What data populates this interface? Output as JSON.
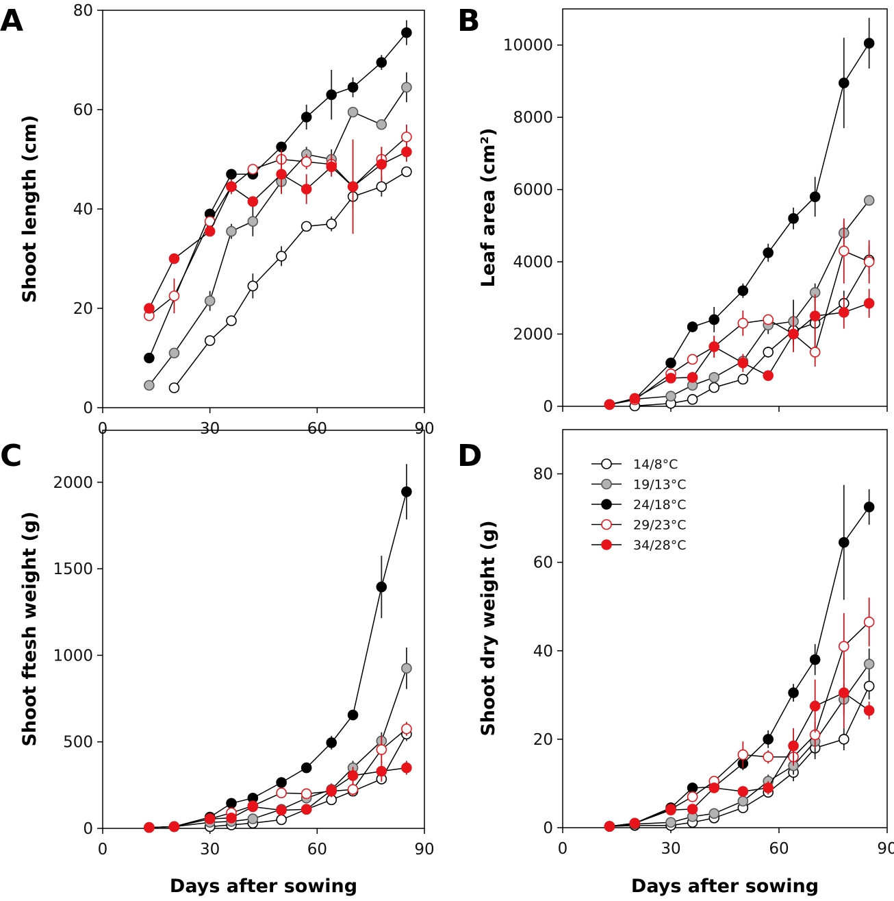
{
  "figure": {
    "legend": [
      {
        "label": "14/8°C",
        "fill": "#ffffff",
        "stroke": "#000000",
        "line": "#000000"
      },
      {
        "label": "19/13°C",
        "fill": "#b3b3b3",
        "stroke": "#555555",
        "line": "#000000"
      },
      {
        "label": "24/18°C",
        "fill": "#000000",
        "stroke": "#000000",
        "line": "#000000"
      },
      {
        "label": "29/23°C",
        "fill": "#ffffff",
        "stroke": "#e8141b",
        "line": "#000000"
      },
      {
        "label": "34/28°C",
        "fill": "#e8141b",
        "stroke": "#e8141b",
        "line": "#000000"
      }
    ]
  },
  "chart_data": [
    {
      "id": "A",
      "panel_label": "A",
      "type": "line",
      "ylabel": "Shoot length (cm)",
      "xlabel": "",
      "xlim": [
        0,
        90
      ],
      "ylim": [
        0,
        80
      ],
      "xticks": [
        0,
        30,
        60,
        90
      ],
      "yticks": [
        0,
        20,
        40,
        60,
        80
      ],
      "series": [
        {
          "name": "14/8°C",
          "x": [
            20,
            30,
            36,
            42,
            50,
            57,
            64,
            70,
            78,
            85
          ],
          "y": [
            4,
            13.5,
            17.5,
            24.5,
            30.5,
            36.5,
            37,
            42.5,
            44.5,
            47.5
          ],
          "err": [
            0,
            0.5,
            0.5,
            2.5,
            2,
            1,
            1.5,
            2.5,
            2,
            1
          ]
        },
        {
          "name": "19/13°C",
          "x": [
            13,
            20,
            30,
            36,
            42,
            50,
            57,
            64,
            70,
            78,
            85
          ],
          "y": [
            4.5,
            11,
            21.5,
            35.5,
            37.5,
            45.5,
            51,
            50,
            59.5,
            57,
            64.5
          ],
          "err": [
            0,
            0.5,
            2,
            1.5,
            3,
            2,
            1.5,
            2,
            1,
            0.5,
            3
          ]
        },
        {
          "name": "24/18°C",
          "x": [
            13,
            30,
            36,
            42,
            50,
            57,
            64,
            70,
            78,
            85
          ],
          "y": [
            10,
            39,
            47,
            47,
            52.5,
            58.5,
            63,
            64.5,
            69.5,
            75.5
          ],
          "err": [
            0,
            0.5,
            0.5,
            0.5,
            0.5,
            2.5,
            5,
            2,
            1.5,
            2.5
          ]
        },
        {
          "name": "29/23°C",
          "x": [
            13,
            20,
            30,
            36,
            42,
            50,
            57,
            64,
            70,
            78,
            85
          ],
          "y": [
            18.5,
            22.5,
            37.5,
            44.5,
            48,
            50,
            49.5,
            49,
            44.5,
            50,
            54.5
          ],
          "err": [
            0,
            3.5,
            1,
            1,
            0.5,
            2,
            1.5,
            2,
            1,
            2.5,
            2.5
          ]
        },
        {
          "name": "34/28°C",
          "x": [
            13,
            20,
            30,
            36,
            42,
            50,
            57,
            64,
            70,
            78,
            85
          ],
          "y": [
            20,
            30,
            35.5,
            44.5,
            41.5,
            47,
            44,
            48.5,
            44.5,
            49,
            51.5
          ],
          "err": [
            0,
            0.5,
            0.5,
            1.5,
            1,
            4,
            3,
            2,
            9.5,
            3.5,
            2
          ]
        }
      ]
    },
    {
      "id": "B",
      "panel_label": "B",
      "type": "line",
      "ylabel": "Leaf area (cm²)",
      "xlabel": "",
      "xlim": [
        0,
        90
      ],
      "ylim": [
        0,
        11000
      ],
      "xticks": [],
      "yticks": [
        0,
        2000,
        4000,
        6000,
        8000,
        10000
      ],
      "series": [
        {
          "name": "14/8°C",
          "x": [
            20,
            30,
            36,
            42,
            50,
            57,
            64,
            70,
            78,
            85
          ],
          "y": [
            10,
            80,
            190,
            520,
            750,
            1500,
            2100,
            2300,
            2850,
            4050
          ],
          "err": [
            0,
            60,
            60,
            80,
            90,
            150,
            250,
            700,
            350,
            400
          ]
        },
        {
          "name": "19/13°C",
          "x": [
            13,
            20,
            30,
            36,
            42,
            50,
            57,
            64,
            70,
            78,
            85
          ],
          "y": [
            50,
            200,
            280,
            580,
            800,
            1250,
            2250,
            2350,
            3150,
            4800,
            5700
          ],
          "err": [
            0,
            50,
            80,
            80,
            100,
            150,
            250,
            600,
            250,
            300,
            100
          ]
        },
        {
          "name": "24/18°C",
          "x": [
            13,
            20,
            30,
            36,
            42,
            50,
            57,
            64,
            70,
            78,
            85
          ],
          "y": [
            50,
            200,
            1200,
            2200,
            2400,
            3200,
            4250,
            5200,
            5800,
            8950,
            10050
          ],
          "err": [
            0,
            50,
            100,
            150,
            350,
            200,
            250,
            300,
            550,
            1250,
            700
          ]
        },
        {
          "name": "29/23°C",
          "x": [
            13,
            20,
            30,
            36,
            42,
            50,
            57,
            64,
            70,
            78,
            85
          ],
          "y": [
            50,
            180,
            900,
            1300,
            1650,
            2300,
            2400,
            2000,
            1500,
            4300,
            4000
          ],
          "err": [
            0,
            40,
            100,
            100,
            300,
            350,
            120,
            300,
            400,
            900,
            600
          ]
        },
        {
          "name": "34/28°C",
          "x": [
            13,
            20,
            30,
            36,
            42,
            50,
            57,
            64,
            70,
            78,
            85
          ],
          "y": [
            50,
            220,
            780,
            800,
            1650,
            1200,
            850,
            2000,
            2500,
            2600,
            2850
          ],
          "err": [
            0,
            40,
            100,
            150,
            300,
            250,
            100,
            500,
            600,
            450,
            400
          ]
        }
      ]
    },
    {
      "id": "C",
      "panel_label": "C",
      "type": "line",
      "ylabel": "Shoot ftesh weight (g)",
      "xlabel": "Days after sowing",
      "xlim": [
        0,
        90
      ],
      "ylim": [
        0,
        2300
      ],
      "xticks": [
        0,
        30,
        60,
        90
      ],
      "yticks": [
        0,
        500,
        1000,
        1500,
        2000
      ],
      "series": [
        {
          "name": "14/8°C",
          "x": [
            30,
            36,
            42,
            50,
            57,
            64,
            70,
            78,
            85
          ],
          "y": [
            10,
            20,
            30,
            50,
            110,
            165,
            215,
            285,
            545
          ],
          "err": [
            5,
            5,
            10,
            15,
            20,
            25,
            30,
            30,
            40
          ]
        },
        {
          "name": "19/13°C",
          "x": [
            13,
            20,
            30,
            36,
            42,
            50,
            57,
            64,
            70,
            78,
            85
          ],
          "y": [
            5,
            10,
            35,
            40,
            55,
            110,
            175,
            225,
            350,
            505,
            925
          ],
          "err": [
            0,
            5,
            10,
            10,
            15,
            20,
            20,
            30,
            40,
            50,
            120
          ]
        },
        {
          "name": "24/18°C",
          "x": [
            13,
            20,
            30,
            36,
            42,
            50,
            57,
            64,
            70,
            78,
            85
          ],
          "y": [
            5,
            10,
            65,
            145,
            175,
            265,
            350,
            495,
            655,
            1395,
            1945
          ],
          "err": [
            0,
            5,
            10,
            20,
            20,
            20,
            30,
            40,
            30,
            180,
            160
          ]
        },
        {
          "name": "29/23°C",
          "x": [
            13,
            20,
            30,
            36,
            42,
            50,
            57,
            64,
            70,
            78,
            85
          ],
          "y": [
            5,
            10,
            55,
            90,
            130,
            205,
            200,
            215,
            225,
            455,
            575
          ],
          "err": [
            0,
            5,
            10,
            15,
            20,
            30,
            20,
            30,
            40,
            80,
            40
          ]
        },
        {
          "name": "34/28°C",
          "x": [
            13,
            20,
            30,
            36,
            42,
            50,
            57,
            64,
            70,
            78,
            85
          ],
          "y": [
            5,
            10,
            55,
            60,
            125,
            105,
            110,
            220,
            305,
            330,
            350
          ],
          "err": [
            0,
            5,
            10,
            15,
            20,
            20,
            20,
            40,
            50,
            60,
            40
          ]
        }
      ]
    },
    {
      "id": "D",
      "panel_label": "D",
      "type": "line",
      "ylabel": "Shoot dry weight (g)",
      "xlabel": "Days after sowing",
      "xlim": [
        0,
        90
      ],
      "ylim": [
        0,
        90
      ],
      "xticks": [
        0,
        30,
        60,
        90
      ],
      "yticks": [
        0,
        20,
        40,
        60,
        80
      ],
      "series": [
        {
          "name": "14/8°C",
          "x": [
            13,
            20,
            30,
            36,
            42,
            50,
            57,
            64,
            70,
            78,
            85
          ],
          "y": [
            0.3,
            0.5,
            0.5,
            1.2,
            2.2,
            4.5,
            8,
            12.5,
            18,
            20,
            32
          ],
          "err": [
            0,
            0.2,
            0.3,
            0.4,
            0.6,
            1,
            1.2,
            2,
            2.5,
            2.5,
            3
          ]
        },
        {
          "name": "19/13°C",
          "x": [
            13,
            20,
            30,
            36,
            42,
            50,
            57,
            64,
            70,
            78,
            85
          ],
          "y": [
            0.3,
            0.8,
            1.2,
            2.5,
            3.2,
            6,
            10.5,
            14,
            19.5,
            29,
            37
          ],
          "err": [
            0,
            0.2,
            0.3,
            0.5,
            0.5,
            1,
            1.5,
            2,
            3,
            3.5,
            3.5
          ]
        },
        {
          "name": "24/18°C",
          "x": [
            13,
            20,
            30,
            36,
            42,
            50,
            57,
            64,
            70,
            78,
            85
          ],
          "y": [
            0.3,
            1,
            4.5,
            9,
            9.2,
            14.5,
            20,
            30.5,
            38,
            64.5,
            72.5
          ],
          "err": [
            0,
            0.2,
            0.5,
            1,
            1,
            1.5,
            2,
            2,
            3.5,
            13,
            4
          ]
        },
        {
          "name": "29/23°C",
          "x": [
            13,
            20,
            30,
            36,
            42,
            50,
            57,
            64,
            70,
            78,
            85
          ],
          "y": [
            0.3,
            1,
            4.2,
            7,
            10.5,
            16.5,
            16,
            16,
            21,
            41,
            46.5
          ],
          "err": [
            0,
            0.2,
            0.5,
            1,
            1,
            3,
            1.5,
            2,
            3,
            7.5,
            5.5
          ]
        },
        {
          "name": "34/28°C",
          "x": [
            13,
            20,
            30,
            36,
            42,
            50,
            57,
            64,
            70,
            78,
            85
          ],
          "y": [
            0.3,
            1,
            4,
            4.2,
            9,
            8.2,
            9,
            18.5,
            27.5,
            30.5,
            26.5
          ],
          "err": [
            0,
            0.2,
            0.5,
            0.5,
            1,
            1,
            1.5,
            4,
            6,
            8,
            2
          ]
        }
      ]
    }
  ]
}
